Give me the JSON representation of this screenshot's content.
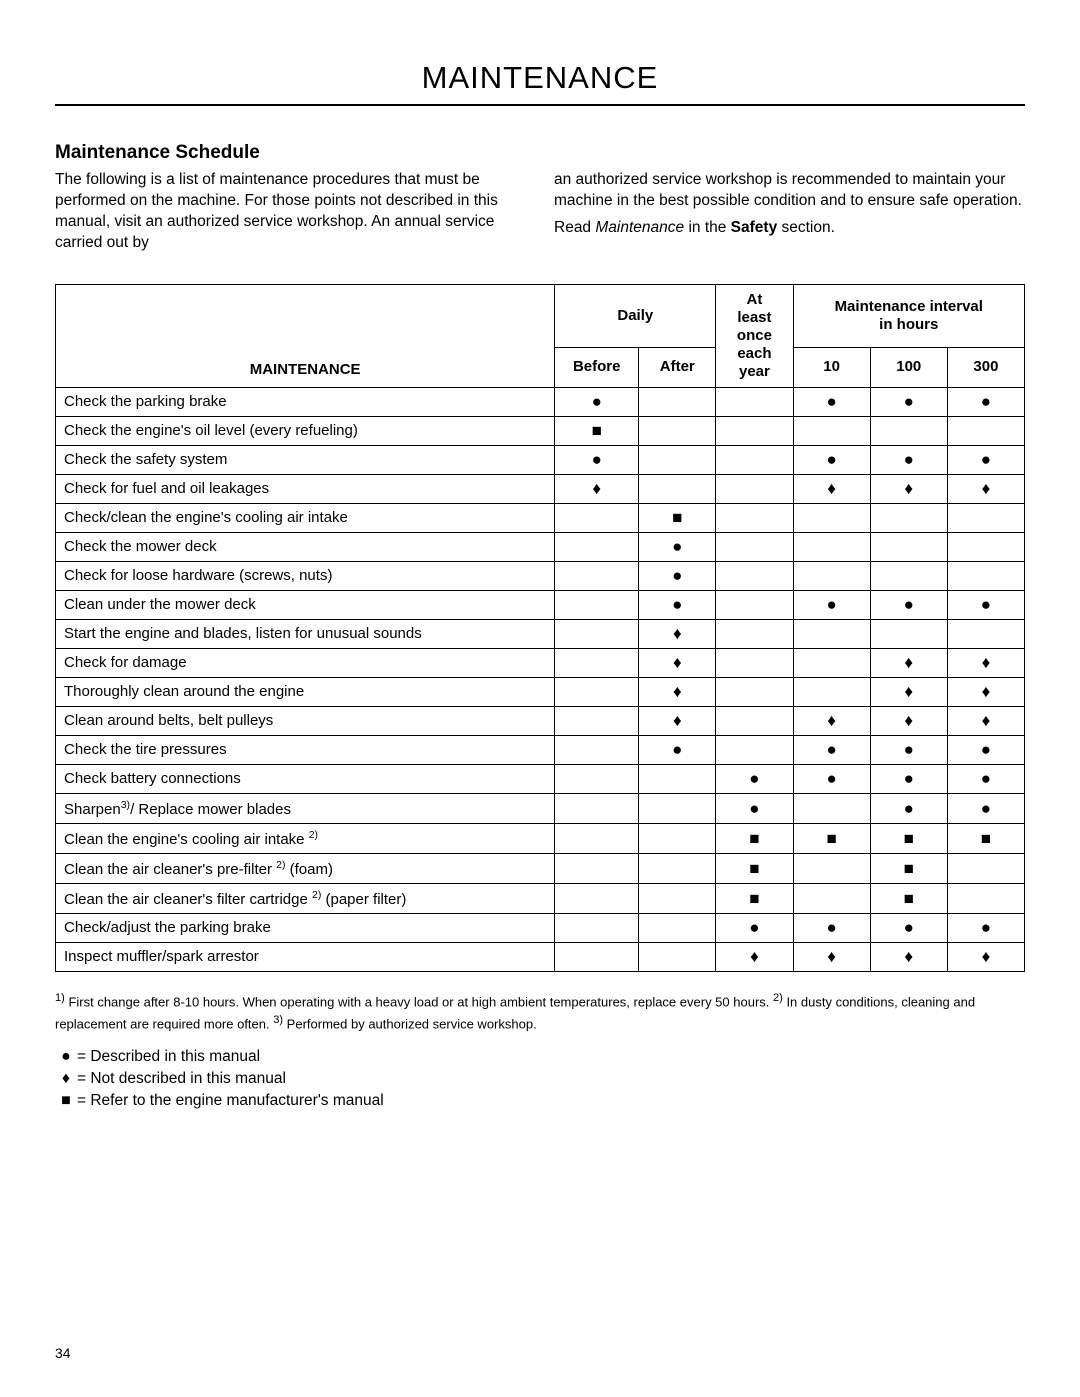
{
  "page": {
    "title": "MAINTENANCE",
    "section_title": "Maintenance Schedule",
    "intro_left": "The following is a list of maintenance procedures that must be performed on the machine. For those points not described in this manual, visit an authorized service workshop. An annual service carried out by",
    "intro_right": "an authorized service workshop is recommended to maintain your machine in the best possible condition and to ensure safe operation.",
    "read_prefix": "Read ",
    "read_italic": "Maintenance",
    "read_mid": " in the ",
    "read_bold": "Safety",
    "read_suffix": " section.",
    "page_number": "34"
  },
  "symbols": {
    "circle": "●",
    "diamond": "♦",
    "square": "■"
  },
  "table": {
    "headers": {
      "maintenance": "MAINTENANCE",
      "daily": "Daily",
      "before": "Before",
      "after": "After",
      "at_least_l1": "At",
      "at_least_l2": "least",
      "once_each_year_l1": "once",
      "once_each_year_l2": "each",
      "once_each_year_l3": "year",
      "interval_l1": "Maintenance interval",
      "interval_l2": "in hours",
      "h10": "10",
      "h100": "100",
      "h300": "300"
    },
    "rows": [
      {
        "label": "Check the parking brake",
        "before": "circle",
        "after": "",
        "year": "",
        "h10": "circle",
        "h100": "circle",
        "h300": "circle"
      },
      {
        "label": "Check the engine's oil level (every refueling)",
        "before": "square",
        "after": "",
        "year": "",
        "h10": "",
        "h100": "",
        "h300": ""
      },
      {
        "label": "Check the safety system",
        "before": "circle",
        "after": "",
        "year": "",
        "h10": "circle",
        "h100": "circle",
        "h300": "circle"
      },
      {
        "label": "Check for fuel and oil leakages",
        "before": "diamond",
        "after": "",
        "year": "",
        "h10": "diamond",
        "h100": "diamond",
        "h300": "diamond"
      },
      {
        "label": "Check/clean the engine's cooling air intake",
        "before": "",
        "after": "square",
        "year": "",
        "h10": "",
        "h100": "",
        "h300": ""
      },
      {
        "label": "Check the mower deck",
        "before": "",
        "after": "circle",
        "year": "",
        "h10": "",
        "h100": "",
        "h300": ""
      },
      {
        "label": "Check for loose hardware (screws, nuts)",
        "before": "",
        "after": "circle",
        "year": "",
        "h10": "",
        "h100": "",
        "h300": ""
      },
      {
        "label": "Clean under the mower deck",
        "before": "",
        "after": "circle",
        "year": "",
        "h10": "circle",
        "h100": "circle",
        "h300": "circle"
      },
      {
        "label": "Start the engine and blades, listen for unusual sounds",
        "before": "",
        "after": "diamond",
        "year": "",
        "h10": "",
        "h100": "",
        "h300": ""
      },
      {
        "label": "Check for damage",
        "before": "",
        "after": "diamond",
        "year": "",
        "h10": "",
        "h100": "diamond",
        "h300": "diamond"
      },
      {
        "label": "Thoroughly clean around the engine",
        "before": "",
        "after": "diamond",
        "year": "",
        "h10": "",
        "h100": "diamond",
        "h300": "diamond"
      },
      {
        "label": "Clean around belts, belt pulleys",
        "before": "",
        "after": "diamond",
        "year": "",
        "h10": "diamond",
        "h100": "diamond",
        "h300": "diamond"
      },
      {
        "label": "Check the tire pressures",
        "before": "",
        "after": "circle",
        "year": "",
        "h10": "circle",
        "h100": "circle",
        "h300": "circle"
      },
      {
        "label": "Check battery connections",
        "before": "",
        "after": "",
        "year": "circle",
        "h10": "circle",
        "h100": "circle",
        "h300": "circle"
      },
      {
        "label_html": "Sharpen<sup>3)</sup>/ Replace mower blades",
        "before": "",
        "after": "",
        "year": "circle",
        "h10": "",
        "h100": "circle",
        "h300": "circle"
      },
      {
        "label_html": "Clean the engine's cooling air intake <sup>2)</sup>",
        "before": "",
        "after": "",
        "year": "square",
        "h10": "square",
        "h100": "square",
        "h300": "square"
      },
      {
        "label_html": "Clean the air cleaner's pre-filter <sup>2)</sup> (foam)",
        "before": "",
        "after": "",
        "year": "square",
        "h10": "",
        "h100": "square",
        "h300": ""
      },
      {
        "label_html": "Clean the air cleaner's filter cartridge <sup>2)</sup> (paper filter)",
        "before": "",
        "after": "",
        "year": "square",
        "h10": "",
        "h100": "square",
        "h300": ""
      },
      {
        "label": "Check/adjust the parking brake",
        "before": "",
        "after": "",
        "year": "circle",
        "h10": "circle",
        "h100": "circle",
        "h300": "circle"
      },
      {
        "label": "Inspect muffler/spark arrestor",
        "before": "",
        "after": "",
        "year": "diamond",
        "h10": "diamond",
        "h100": "diamond",
        "h300": "diamond"
      }
    ]
  },
  "footnotes": {
    "f1_sup": "1)",
    "f1": " First change after 8-10 hours. When operating with a heavy load or at high ambient temperatures, replace every 50 hours. ",
    "f2_sup": "2)",
    "f2": " In dusty conditions, cleaning and replacement are required more often. ",
    "f3_sup": "3)",
    "f3": " Performed by authorized service workshop."
  },
  "legend": [
    {
      "sym": "circle",
      "text": "= Described in this manual"
    },
    {
      "sym": "diamond",
      "text": "= Not described in this manual"
    },
    {
      "sym": "square",
      "text": "= Refer to the engine manufacturer's manual"
    }
  ]
}
